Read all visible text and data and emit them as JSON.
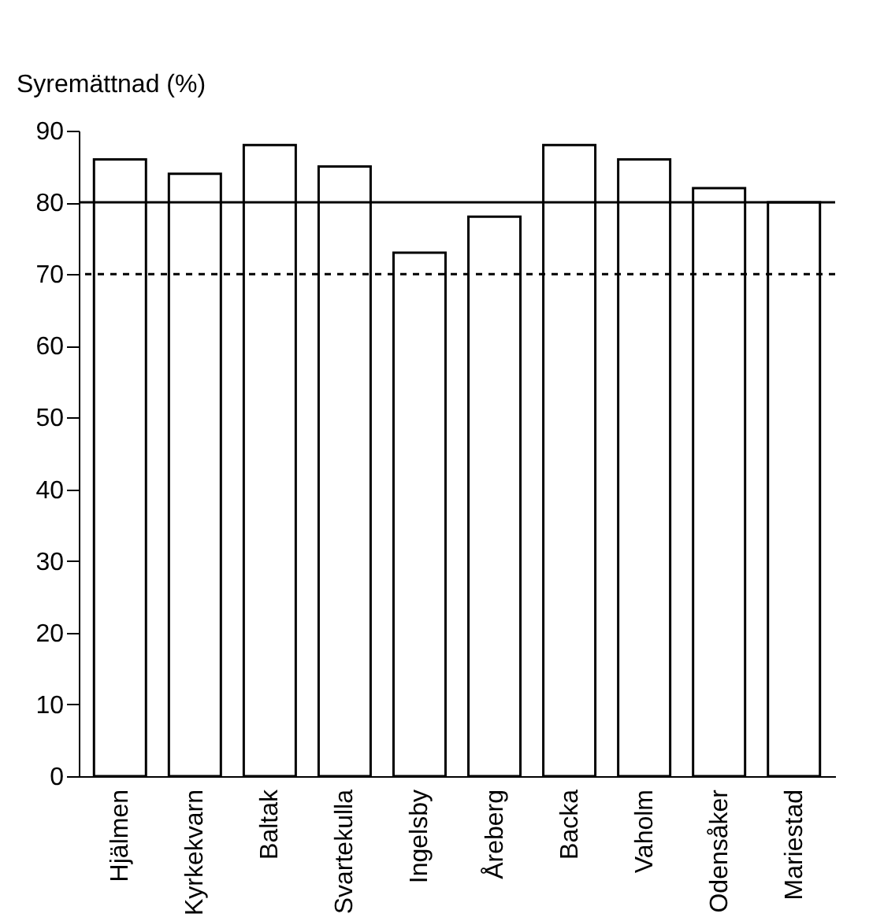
{
  "chart_data": {
    "type": "bar",
    "ylabel": "Syremättnad (%)",
    "categories": [
      "Hjälmen",
      "Kyrkekvarn",
      "Baltak",
      "Svartekulla",
      "Ingelsby",
      "Åreberg",
      "Backa",
      "Vaholm",
      "Odensåker",
      "Mariestad"
    ],
    "values": [
      86,
      84,
      88,
      85,
      73,
      78,
      88,
      86,
      82,
      80
    ],
    "color": "#ffffff",
    "ylim": [
      0,
      90
    ],
    "yticks": [
      0,
      10,
      20,
      30,
      40,
      50,
      60,
      70,
      80,
      90
    ],
    "ref_lines": [
      {
        "axis": "y",
        "value": 80,
        "line_style": "solid",
        "color": "#000000"
      },
      {
        "axis": "y",
        "value": 70,
        "line_style": "dashed",
        "color": "#000000"
      }
    ],
    "grid": false
  }
}
